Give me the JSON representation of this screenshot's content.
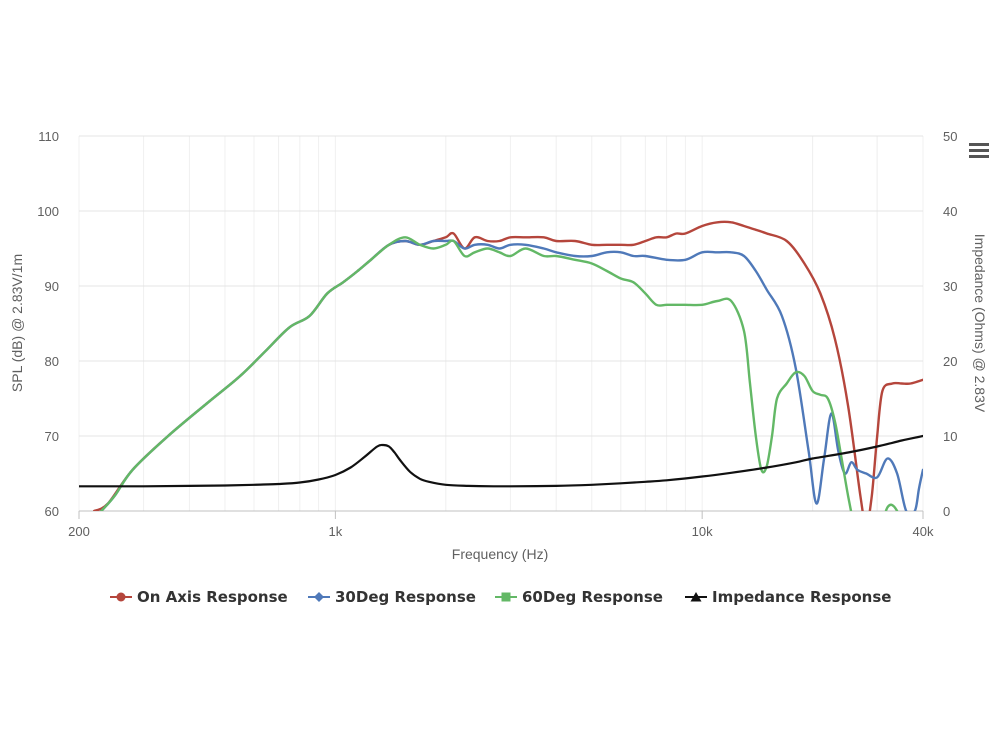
{
  "chart_data": {
    "type": "line",
    "title": "",
    "xlabel": "Frequency (Hz)",
    "ylabel": "SPL (dB) @ 2.83V/1m",
    "y2label": "Impedance (Ohms) @ 2.83V",
    "xscale": "log",
    "xlim": [
      200,
      40000
    ],
    "ylim": [
      60,
      110
    ],
    "y2lim": [
      0,
      50
    ],
    "x_ticks": [
      {
        "value": 200,
        "label": "200"
      },
      {
        "value": 1000,
        "label": "1k"
      },
      {
        "value": 10000,
        "label": "10k"
      },
      {
        "value": 40000,
        "label": "40k"
      }
    ],
    "y_ticks": [
      {
        "value": 60,
        "label": "60"
      },
      {
        "value": 70,
        "label": "70"
      },
      {
        "value": 80,
        "label": "80"
      },
      {
        "value": 90,
        "label": "90"
      },
      {
        "value": 100,
        "label": "100"
      },
      {
        "value": 110,
        "label": "110"
      }
    ],
    "y2_ticks": [
      {
        "value": 0,
        "label": "0"
      },
      {
        "value": 10,
        "label": "10"
      },
      {
        "value": 20,
        "label": "20"
      },
      {
        "value": 30,
        "label": "30"
      },
      {
        "value": 40,
        "label": "40"
      },
      {
        "value": 50,
        "label": "50"
      }
    ],
    "grid": true,
    "legend_position": "bottom",
    "series": [
      {
        "name": "On Axis Response",
        "color": "#b5463c",
        "marker": "circle",
        "axis": "left",
        "x": [
          220,
          240,
          280,
          350,
          450,
          550,
          650,
          750,
          850,
          950,
          1050,
          1150,
          1250,
          1400,
          1550,
          1700,
          1850,
          2000,
          2100,
          2250,
          2400,
          2600,
          2800,
          3000,
          3300,
          3700,
          4000,
          4500,
          5000,
          5500,
          6000,
          6500,
          7000,
          7500,
          8000,
          8500,
          9000,
          10000,
          11000,
          12000,
          13000,
          14000,
          15000,
          17000,
          19000,
          21000,
          23000,
          25000,
          27000,
          28000,
          29000,
          30000,
          31000,
          33000,
          35000,
          37000,
          40000
        ],
        "y": [
          60,
          61,
          65.5,
          70,
          74.5,
          78,
          81.5,
          84.5,
          86,
          89,
          90.5,
          92,
          93.5,
          95.5,
          96,
          95.5,
          96,
          96.5,
          97,
          95,
          96.5,
          96,
          96,
          96.5,
          96.5,
          96.5,
          96,
          96,
          95.5,
          95.5,
          95.5,
          95.5,
          96,
          96.5,
          96.5,
          97,
          97,
          98,
          98.5,
          98.5,
          98,
          97.5,
          97,
          96,
          93,
          89,
          83,
          74,
          62,
          58,
          62,
          70,
          76,
          77,
          77,
          77,
          77.5
        ]
      },
      {
        "name": "30Deg Response",
        "color": "#4f79b9",
        "marker": "diamond",
        "axis": "left",
        "x": [
          230,
          250,
          280,
          350,
          450,
          550,
          650,
          750,
          850,
          950,
          1050,
          1150,
          1250,
          1400,
          1550,
          1700,
          1850,
          2000,
          2100,
          2250,
          2400,
          2600,
          2800,
          3000,
          3300,
          3700,
          4000,
          4500,
          5000,
          5500,
          6000,
          6500,
          7000,
          8000,
          9000,
          10000,
          11000,
          12000,
          13000,
          14000,
          15000,
          16500,
          18000,
          19500,
          20500,
          21500,
          22500,
          23500,
          24500,
          25500,
          26500,
          28000,
          30000,
          32000,
          34000,
          36000,
          38000,
          39000,
          40000
        ],
        "y": [
          60,
          62,
          65.5,
          70,
          74.5,
          78,
          81.5,
          84.5,
          86,
          89,
          90.5,
          92,
          93.5,
          95.5,
          96,
          95.5,
          96,
          96,
          96,
          95,
          95.5,
          95.5,
          95,
          95.5,
          95.5,
          95,
          94.5,
          94,
          94,
          94.5,
          94.5,
          94,
          94,
          93.5,
          93.5,
          94.5,
          94.5,
          94.5,
          94,
          92,
          89.5,
          86,
          79,
          68,
          61,
          67,
          73,
          68,
          65,
          66.5,
          65.5,
          65,
          64.5,
          67,
          65,
          60,
          60,
          63,
          65.5
        ]
      },
      {
        "name": "60Deg Response",
        "color": "#63b866",
        "marker": "square",
        "axis": "left",
        "x": [
          230,
          250,
          280,
          350,
          450,
          550,
          650,
          750,
          850,
          950,
          1050,
          1150,
          1250,
          1400,
          1550,
          1700,
          1850,
          2000,
          2100,
          2250,
          2400,
          2600,
          2800,
          3000,
          3300,
          3700,
          4000,
          4500,
          5000,
          5500,
          6000,
          6500,
          7000,
          7500,
          8000,
          8500,
          9000,
          10000,
          11000,
          12000,
          13000,
          13500,
          14000,
          14500,
          15000,
          15500,
          16000,
          17000,
          18000,
          19000,
          20000,
          21000,
          22000,
          23000,
          24000,
          25000,
          26000,
          27000,
          28000,
          30000,
          32000,
          34000,
          36000
        ],
        "y": [
          60,
          62,
          65.5,
          70,
          74.5,
          78,
          81.5,
          84.5,
          86,
          89,
          90.5,
          92,
          93.5,
          95.5,
          96.5,
          95.5,
          95,
          95.5,
          96,
          94,
          94.5,
          95,
          94.5,
          94,
          95,
          94,
          94,
          93.5,
          93,
          92,
          91,
          90.5,
          89,
          87.5,
          87.5,
          87.5,
          87.5,
          87.5,
          88,
          88,
          84,
          77,
          70,
          65.5,
          66,
          70,
          75,
          77,
          78.5,
          78,
          76,
          75.5,
          75,
          72,
          67,
          62,
          58,
          56,
          55,
          56,
          60.5,
          60,
          56
        ]
      },
      {
        "name": "Impedance Response",
        "color": "#111111",
        "marker": "triangle",
        "axis": "right",
        "x": [
          200,
          300,
          400,
          500,
          600,
          700,
          800,
          900,
          1000,
          1100,
          1200,
          1300,
          1350,
          1400,
          1450,
          1500,
          1600,
          1700,
          1800,
          2000,
          2300,
          2700,
          3000,
          4000,
          5000,
          6000,
          7000,
          8000,
          10000,
          12000,
          15000,
          18000,
          20000,
          25000,
          30000,
          35000,
          40000
        ],
        "y": [
          3.3,
          3.3,
          3.35,
          3.4,
          3.5,
          3.6,
          3.8,
          4.2,
          4.8,
          5.8,
          7.2,
          8.6,
          8.8,
          8.6,
          7.8,
          6.8,
          5.2,
          4.3,
          3.9,
          3.5,
          3.35,
          3.3,
          3.3,
          3.35,
          3.5,
          3.7,
          3.9,
          4.1,
          4.6,
          5.1,
          5.8,
          6.5,
          7,
          7.8,
          8.6,
          9.4,
          10
        ]
      }
    ]
  }
}
